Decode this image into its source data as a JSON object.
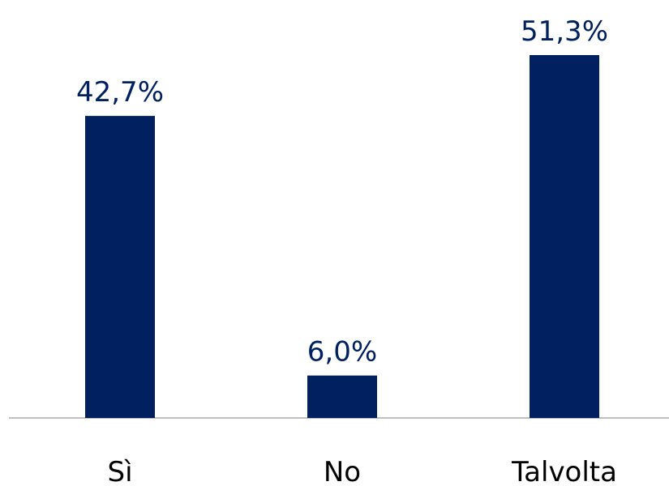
{
  "chart_data": {
    "type": "bar",
    "categories": [
      "Sì",
      "No",
      "Talvolta"
    ],
    "values": [
      42.7,
      6.0,
      51.3
    ],
    "value_labels": [
      "42,7%",
      "6,0%",
      "51,3%"
    ],
    "color": "#002060"
  }
}
